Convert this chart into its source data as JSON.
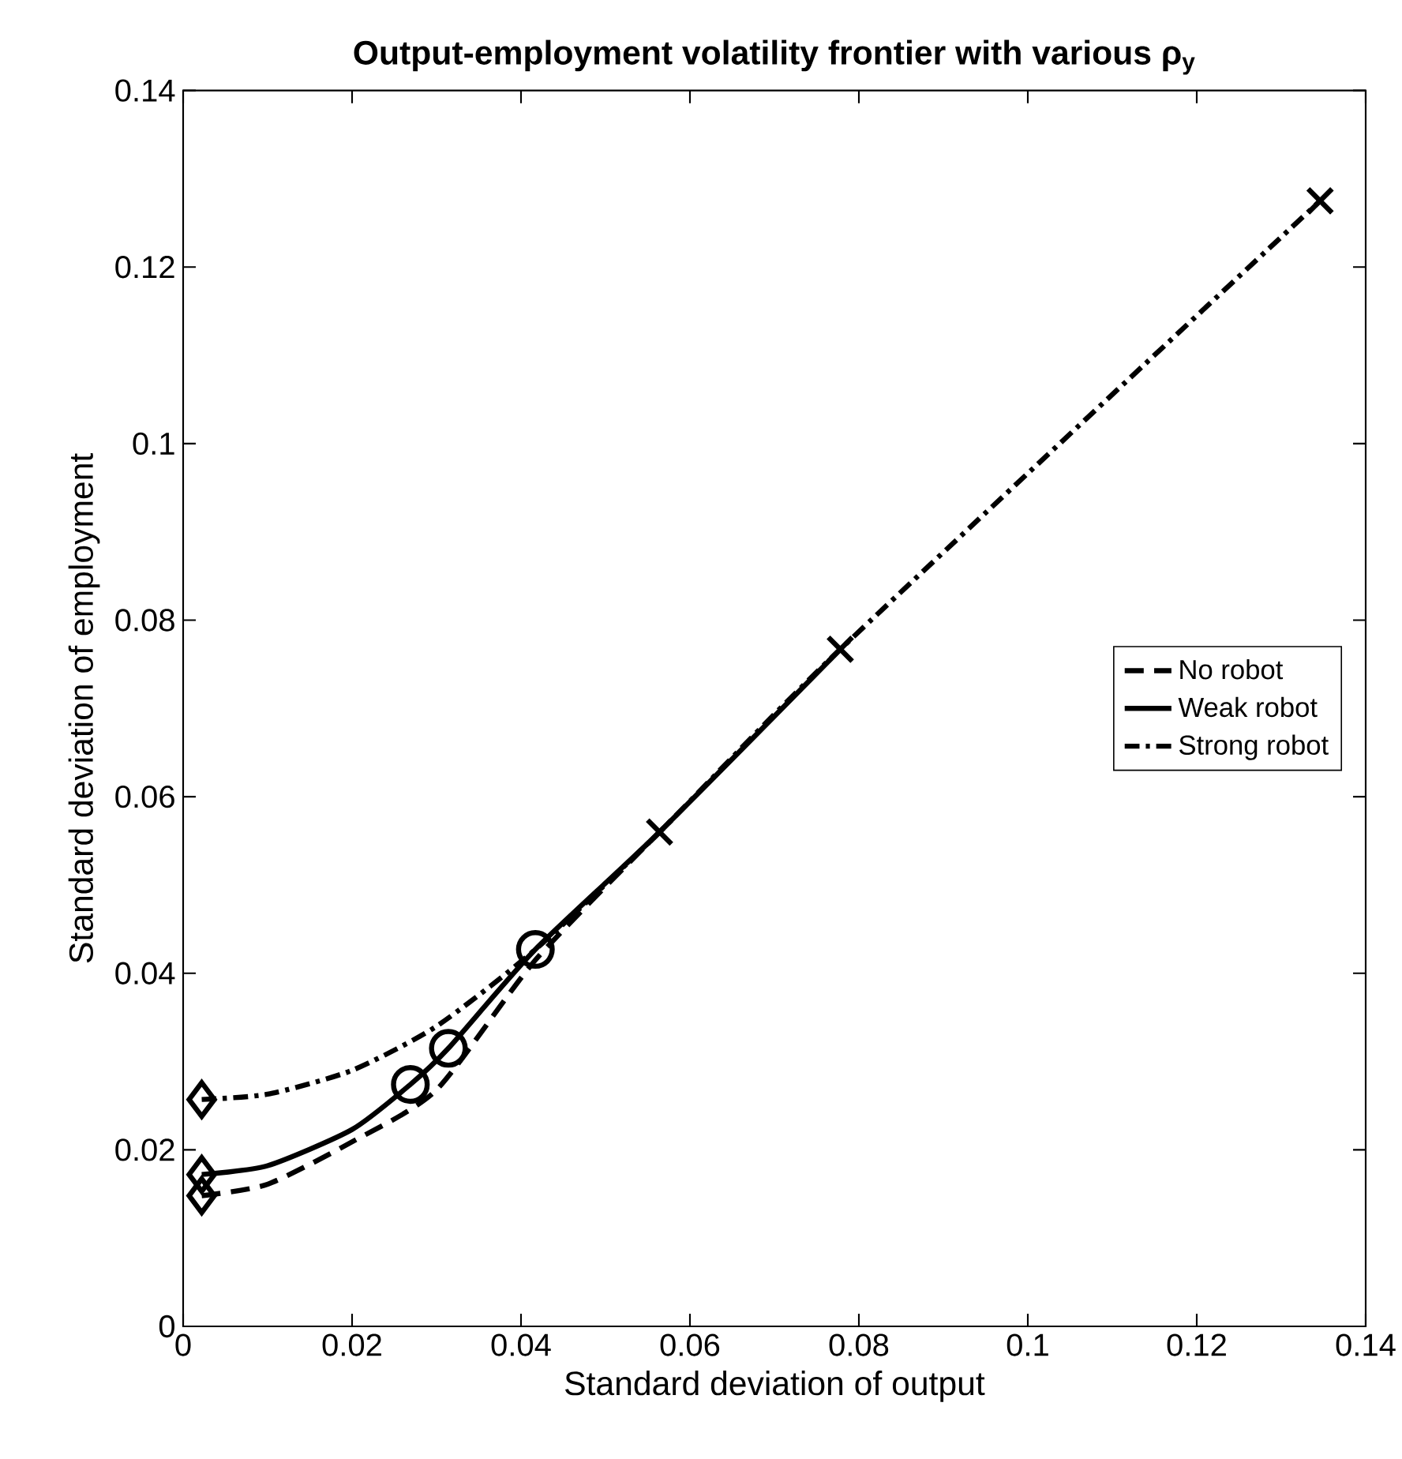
{
  "chart_data": {
    "type": "line",
    "title": "Output-employment volatility frontier with various ρ$_{y}$",
    "xlabel": "Standard deviation of output",
    "ylabel": "Standard deviation of employment",
    "xlim": [
      0,
      0.14
    ],
    "ylim": [
      0,
      0.14
    ],
    "xticks": [
      0,
      0.02,
      0.04,
      0.06,
      0.08,
      0.1,
      0.12,
      0.14
    ],
    "yticks": [
      0,
      0.02,
      0.04,
      0.06,
      0.08,
      0.1,
      0.12,
      0.14
    ],
    "legend": "right",
    "grid": false,
    "series": [
      {
        "name": "No robot",
        "color": "#000000",
        "line_style": "dashed",
        "marker": "none",
        "x": [
          0.0022,
          0.01,
          0.02,
          0.03,
          0.0417,
          0.0564
        ],
        "values": [
          0.0148,
          0.0161,
          0.0209,
          0.0268,
          0.0415,
          0.056
        ]
      },
      {
        "name": "Weak robot",
        "color": "#000000",
        "line_style": "solid",
        "marker": "none",
        "x": [
          0.0022,
          0.01,
          0.02,
          0.0269,
          0.0314,
          0.0417,
          0.0564,
          0.0778
        ],
        "values": [
          0.0172,
          0.0182,
          0.0223,
          0.0274,
          0.0315,
          0.0427,
          0.056,
          0.0767
        ]
      },
      {
        "name": "Strong robot",
        "color": "#000000",
        "line_style": "dashdot",
        "marker": "none",
        "x": [
          0.0022,
          0.01,
          0.02,
          0.03,
          0.0417,
          0.0564,
          0.0778,
          0.1346
        ],
        "values": [
          0.0257,
          0.0263,
          0.029,
          0.034,
          0.0427,
          0.056,
          0.0767,
          0.1275
        ]
      },
      {
        "type": "scatter",
        "color": "#000000",
        "marker": "diamond",
        "x": [
          0.0022,
          0.0022,
          0.0022
        ],
        "values": [
          0.0148,
          0.0172,
          0.0257
        ]
      },
      {
        "type": "scatter",
        "color": "#000000",
        "marker": "circle",
        "x": [
          0.0269,
          0.0314,
          0.0417
        ],
        "values": [
          0.0274,
          0.0315,
          0.0427
        ]
      },
      {
        "type": "scatter",
        "color": "#000000",
        "marker": "cross",
        "x": [
          0.0564,
          0.0778,
          0.1346
        ],
        "values": [
          0.056,
          0.0767,
          0.1275
        ]
      }
    ]
  }
}
